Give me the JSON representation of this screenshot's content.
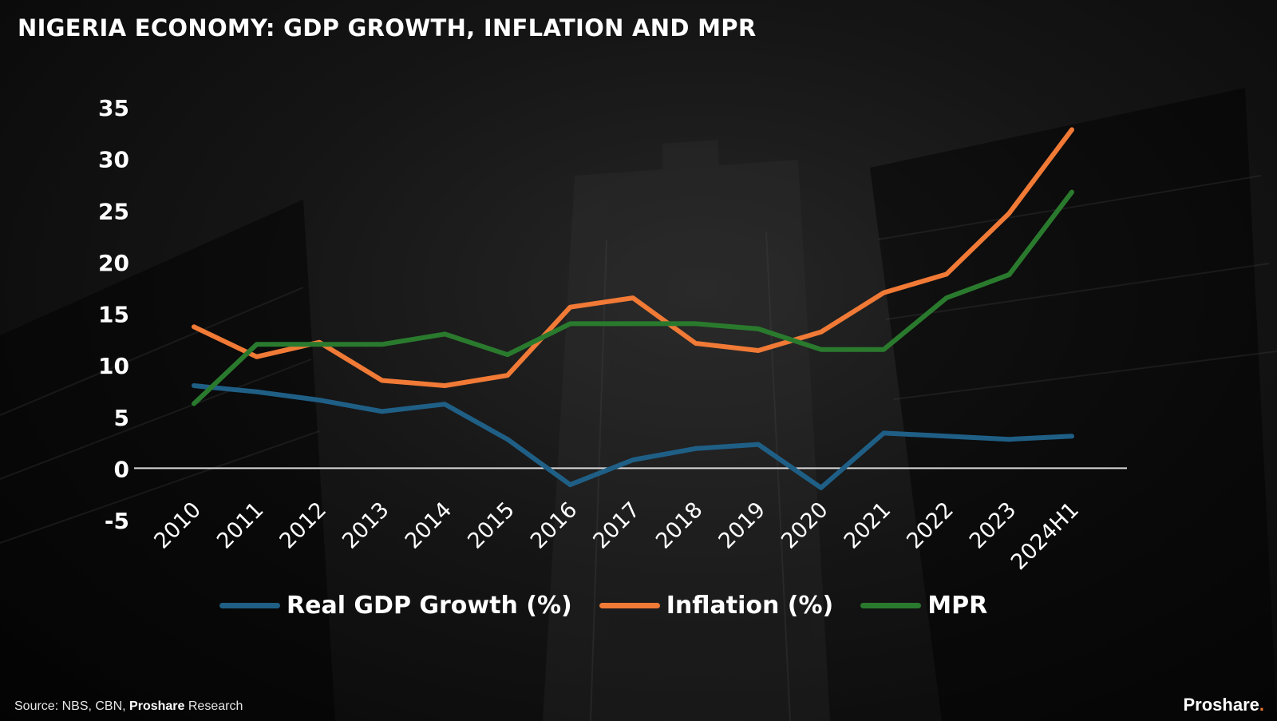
{
  "title": "NIGERIA ECONOMY: GDP GROWTH, INFLATION AND MPR",
  "source": {
    "prefix": "Source: NBS, CBN, ",
    "bold": "Proshare",
    "suffix": " Research"
  },
  "brand": {
    "name": "Proshare",
    "dot": "."
  },
  "colors": {
    "gdp": "#1f5f86",
    "inflation": "#f07a36",
    "mpr": "#2a7a2e",
    "zero_line": "#d9d9d9",
    "text": "#ffffff"
  },
  "chart_data": {
    "type": "line",
    "title": "NIGERIA ECONOMY: GDP GROWTH, INFLATION AND MPR",
    "x": [
      "2010",
      "2011",
      "2012",
      "2013",
      "2014",
      "2015",
      "2016",
      "2017",
      "2018",
      "2019",
      "2020",
      "2021",
      "2022",
      "2023",
      "2024H1"
    ],
    "yticks": [
      "35",
      "30",
      "25",
      "20",
      "15",
      "10",
      "5",
      "0",
      "-5"
    ],
    "ylim": [
      -5,
      35
    ],
    "grid": false,
    "legend_position": "bottom",
    "series": [
      {
        "name": "Real GDP Growth (%)",
        "color_key": "gdp",
        "values": [
          8.0,
          7.4,
          6.6,
          5.5,
          6.2,
          2.8,
          -1.6,
          0.8,
          1.9,
          2.3,
          -1.9,
          3.4,
          3.1,
          2.8,
          3.1
        ]
      },
      {
        "name": "Inflation (%)",
        "color_key": "inflation",
        "values": [
          13.7,
          10.8,
          12.2,
          8.5,
          8.0,
          9.0,
          15.6,
          16.5,
          12.1,
          11.4,
          13.2,
          17.0,
          18.8,
          24.7,
          32.8
        ]
      },
      {
        "name": "MPR",
        "color_key": "mpr",
        "values": [
          6.25,
          12.0,
          12.0,
          12.0,
          13.0,
          11.0,
          14.0,
          14.0,
          14.0,
          13.5,
          11.5,
          11.5,
          16.5,
          18.75,
          26.75
        ]
      }
    ]
  }
}
